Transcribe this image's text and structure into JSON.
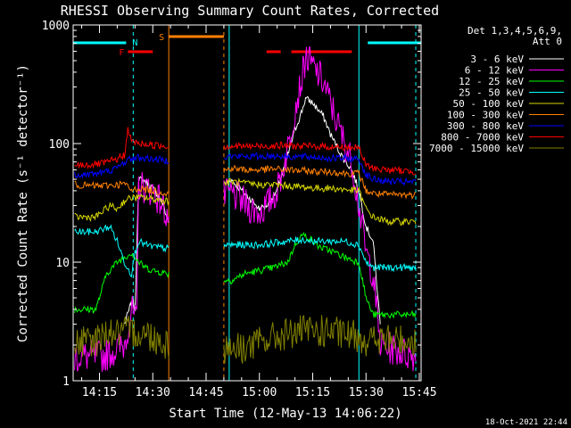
{
  "chart_data": {
    "type": "line",
    "title": "RHESSI Observing Summary Count Rates, Corrected",
    "xlabel": "Start Time (12-May-13 14:06:22)",
    "ylabel": "Corrected Count Rate (s⁻¹ detector⁻¹)",
    "yscale": "log",
    "ylim": [
      1,
      1000
    ],
    "xlim": [
      7.6,
      105.5
    ],
    "y_ticks": [
      {
        "v": 1,
        "label": "1"
      },
      {
        "v": 10,
        "label": "10"
      },
      {
        "v": 100,
        "label": "100"
      },
      {
        "v": 1000,
        "label": "1000"
      }
    ],
    "x_ticks": [
      {
        "m": 15,
        "label": "14:15"
      },
      {
        "m": 30,
        "label": "14:30"
      },
      {
        "m": 45,
        "label": "14:45"
      },
      {
        "m": 60,
        "label": "15:00"
      },
      {
        "m": 75,
        "label": "15:15"
      },
      {
        "m": 90,
        "label": "15:30"
      },
      {
        "m": 105,
        "label": "15:45"
      }
    ],
    "legend_header": [
      "Det 1,3,4,5,6,9,",
      "Att 0"
    ],
    "footer_date": "18-Oct-2021 22:44",
    "flags": {
      "night": [
        {
          "x0": 7.6,
          "x1": 22.5
        },
        {
          "x0": 90.5,
          "x1": 105.5
        }
      ],
      "night_label": "N",
      "night_color": "#00ffff",
      "flare": [
        {
          "x0": 23,
          "x1": 30
        },
        {
          "x0": 62,
          "x1": 66
        },
        {
          "x0": 69,
          "x1": 86
        }
      ],
      "flare_label": "F",
      "flare_color": "#ff0000",
      "saa": [
        {
          "x0": 34.5,
          "x1": 50
        }
      ],
      "saa_label": "S",
      "saa_color": "#ff8000"
    },
    "data_gaps": [
      {
        "x0": 34.5,
        "x1": 50
      }
    ],
    "vlines": [
      {
        "m": 24.5,
        "color": "#00ffff",
        "dashed": true
      },
      {
        "m": 34.5,
        "color": "#ff8000",
        "dashed": false
      },
      {
        "m": 50,
        "color": "#ff8000",
        "dashed": true
      },
      {
        "m": 51.5,
        "color": "#00ffff",
        "dashed": false
      },
      {
        "m": 88,
        "color": "#00ffff",
        "dashed": false
      },
      {
        "m": 104,
        "color": "#00ffff",
        "dashed": true
      }
    ],
    "series": [
      {
        "name": "3 - 6 keV",
        "color": "#ffffff",
        "points": [
          [
            22,
            3
          ],
          [
            24.5,
            5
          ],
          [
            25,
            3.6
          ],
          [
            26,
            50
          ],
          [
            28,
            48
          ],
          [
            30,
            42
          ],
          [
            32,
            35
          ],
          [
            33,
            30
          ],
          [
            34.3,
            22
          ],
          [
            52,
            50
          ],
          [
            55,
            40
          ],
          [
            58,
            33
          ],
          [
            60,
            28
          ],
          [
            62,
            30
          ],
          [
            65,
            40
          ],
          [
            68,
            80
          ],
          [
            70,
            130
          ],
          [
            72,
            190
          ],
          [
            73,
            240
          ],
          [
            75,
            220
          ],
          [
            78,
            170
          ],
          [
            80,
            120
          ],
          [
            83,
            80
          ],
          [
            86,
            60
          ],
          [
            88,
            40
          ],
          [
            90,
            20
          ],
          [
            92,
            15
          ],
          [
            94,
            3
          ]
        ]
      },
      {
        "name": "6 - 12 keV",
        "color": "#ff00ff",
        "points": [
          [
            8,
            1.6
          ],
          [
            16,
            1.6
          ],
          [
            22,
            2
          ],
          [
            24,
            4
          ],
          [
            25.5,
            3
          ],
          [
            26,
            45
          ],
          [
            28,
            42
          ],
          [
            30,
            40
          ],
          [
            32,
            33
          ],
          [
            34.3,
            24
          ],
          [
            52,
            38
          ],
          [
            55,
            33
          ],
          [
            58,
            28
          ],
          [
            60,
            26
          ],
          [
            62,
            30
          ],
          [
            65,
            40
          ],
          [
            68,
            90
          ],
          [
            70,
            200
          ],
          [
            72,
            360
          ],
          [
            73,
            540
          ],
          [
            75,
            450
          ],
          [
            78,
            330
          ],
          [
            80,
            220
          ],
          [
            83,
            120
          ],
          [
            86,
            70
          ],
          [
            88,
            30
          ],
          [
            90,
            12
          ],
          [
            92,
            8
          ],
          [
            94,
            2
          ],
          [
            104,
            1.6
          ]
        ]
      },
      {
        "name": "12 - 25 keV",
        "color": "#00ff00",
        "points": [
          [
            8,
            4
          ],
          [
            14,
            4
          ],
          [
            17,
            8
          ],
          [
            20,
            10
          ],
          [
            22,
            11
          ],
          [
            24,
            12
          ],
          [
            26,
            10
          ],
          [
            28,
            9
          ],
          [
            30,
            8.5
          ],
          [
            34.3,
            8
          ],
          [
            52,
            7
          ],
          [
            56,
            8
          ],
          [
            60,
            8.5
          ],
          [
            64,
            9
          ],
          [
            68,
            10
          ],
          [
            70,
            14
          ],
          [
            72,
            17
          ],
          [
            74,
            16
          ],
          [
            76,
            14
          ],
          [
            78,
            13
          ],
          [
            80,
            12.5
          ],
          [
            84,
            11
          ],
          [
            88,
            10
          ],
          [
            90,
            5
          ],
          [
            92,
            3.6
          ],
          [
            96,
            3.6
          ],
          [
            104,
            3.6
          ]
        ]
      },
      {
        "name": "25 - 50 keV",
        "color": "#00ffff",
        "points": [
          [
            8,
            18
          ],
          [
            14,
            18
          ],
          [
            18,
            20
          ],
          [
            20,
            15
          ],
          [
            22,
            10
          ],
          [
            24,
            8
          ],
          [
            25,
            12
          ],
          [
            26,
            15
          ],
          [
            28,
            14
          ],
          [
            30,
            13.5
          ],
          [
            34.3,
            13
          ],
          [
            52,
            14
          ],
          [
            56,
            14
          ],
          [
            60,
            14
          ],
          [
            64,
            14.5
          ],
          [
            68,
            15
          ],
          [
            72,
            15.5
          ],
          [
            76,
            15
          ],
          [
            80,
            15
          ],
          [
            84,
            15
          ],
          [
            88,
            14
          ],
          [
            90,
            10
          ],
          [
            92,
            9
          ],
          [
            96,
            9
          ],
          [
            104,
            9
          ]
        ]
      },
      {
        "name": "50 - 100 keV",
        "color": "#d8d800",
        "points": [
          [
            8,
            24
          ],
          [
            14,
            24
          ],
          [
            18,
            30
          ],
          [
            20,
            28
          ],
          [
            22,
            33
          ],
          [
            24,
            35
          ],
          [
            26,
            35
          ],
          [
            28,
            35
          ],
          [
            30,
            34
          ],
          [
            34.3,
            33
          ],
          [
            52,
            48
          ],
          [
            56,
            46
          ],
          [
            60,
            45
          ],
          [
            64,
            45
          ],
          [
            68,
            44
          ],
          [
            72,
            43
          ],
          [
            76,
            42
          ],
          [
            80,
            42
          ],
          [
            84,
            41
          ],
          [
            88,
            40
          ],
          [
            90,
            28
          ],
          [
            92,
            24
          ],
          [
            96,
            22
          ],
          [
            104,
            22
          ]
        ]
      },
      {
        "name": "100 - 300 keV",
        "color": "#ff8000",
        "points": [
          [
            8,
            45
          ],
          [
            12,
            44
          ],
          [
            16,
            44
          ],
          [
            20,
            45
          ],
          [
            22,
            46
          ],
          [
            24,
            40
          ],
          [
            26,
            42
          ],
          [
            28,
            41
          ],
          [
            30,
            40
          ],
          [
            34.3,
            38
          ],
          [
            52,
            62
          ],
          [
            56,
            60
          ],
          [
            60,
            60
          ],
          [
            64,
            61
          ],
          [
            68,
            60
          ],
          [
            72,
            59
          ],
          [
            76,
            58
          ],
          [
            80,
            58
          ],
          [
            84,
            56
          ],
          [
            88,
            56
          ],
          [
            90,
            40
          ],
          [
            92,
            38
          ],
          [
            96,
            37
          ],
          [
            104,
            37
          ]
        ]
      },
      {
        "name": "300 - 800 keV",
        "color": "#0000ff",
        "points": [
          [
            8,
            55
          ],
          [
            12,
            55
          ],
          [
            16,
            57
          ],
          [
            20,
            62
          ],
          [
            22,
            70
          ],
          [
            24,
            75
          ],
          [
            26,
            76
          ],
          [
            28,
            75
          ],
          [
            30,
            74
          ],
          [
            34.3,
            72
          ],
          [
            52,
            78
          ],
          [
            56,
            78
          ],
          [
            60,
            78
          ],
          [
            64,
            79
          ],
          [
            68,
            78
          ],
          [
            72,
            77
          ],
          [
            76,
            77
          ],
          [
            80,
            75
          ],
          [
            84,
            75
          ],
          [
            88,
            74
          ],
          [
            90,
            55
          ],
          [
            92,
            50
          ],
          [
            96,
            48
          ],
          [
            104,
            47
          ]
        ]
      },
      {
        "name": "800 - 7000 keV",
        "color": "#ff0000",
        "points": [
          [
            8,
            66
          ],
          [
            12,
            66
          ],
          [
            16,
            68
          ],
          [
            20,
            74
          ],
          [
            22,
            80
          ],
          [
            23,
            130
          ],
          [
            24,
            105
          ],
          [
            26,
            100
          ],
          [
            28,
            99
          ],
          [
            30,
            97
          ],
          [
            34.3,
            95
          ],
          [
            52,
            95
          ],
          [
            56,
            95
          ],
          [
            60,
            95
          ],
          [
            64,
            96
          ],
          [
            68,
            96
          ],
          [
            72,
            95
          ],
          [
            76,
            95
          ],
          [
            80,
            94
          ],
          [
            84,
            93
          ],
          [
            88,
            92
          ],
          [
            90,
            66
          ],
          [
            92,
            62
          ],
          [
            96,
            60
          ],
          [
            104,
            58
          ]
        ]
      },
      {
        "name": "7000 - 15000 keV",
        "color": "#808000",
        "points": [
          [
            8,
            2
          ],
          [
            14,
            2.2
          ],
          [
            17,
            2.6
          ],
          [
            20,
            2.5
          ],
          [
            24,
            2.6
          ],
          [
            28,
            2.5
          ],
          [
            32,
            2.2
          ],
          [
            34.3,
            2.0
          ],
          [
            52,
            1.9
          ],
          [
            56,
            1.9
          ],
          [
            60,
            2.1
          ],
          [
            64,
            2.3
          ],
          [
            68,
            2.5
          ],
          [
            72,
            2.6
          ],
          [
            76,
            2.6
          ],
          [
            80,
            2.6
          ],
          [
            84,
            2.4
          ],
          [
            88,
            2.4
          ],
          [
            90,
            2.2
          ],
          [
            92,
            2.2
          ],
          [
            96,
            2.2
          ],
          [
            104,
            2.2
          ]
        ]
      }
    ]
  }
}
